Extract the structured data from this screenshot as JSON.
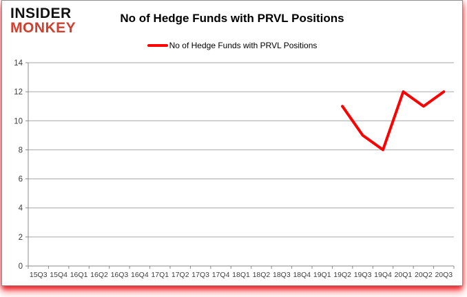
{
  "logo": {
    "line1": "INSIDER",
    "line2": "MONKEY",
    "line1_color": "#111111",
    "line2_color": "#d1402f"
  },
  "title": "No of Hedge Funds with PRVL Positions",
  "legend": {
    "label": "No of Hedge Funds with PRVL Positions",
    "line_color": "#fe0000"
  },
  "chart_data": {
    "type": "line",
    "title": "No of Hedge Funds with PRVL Positions",
    "categories": [
      "15Q3",
      "15Q4",
      "16Q1",
      "16Q2",
      "16Q3",
      "16Q4",
      "17Q1",
      "17Q2",
      "17Q3",
      "17Q4",
      "18Q1",
      "18Q2",
      "18Q3",
      "18Q4",
      "19Q1",
      "19Q2",
      "19Q3",
      "19Q4",
      "20Q1",
      "20Q2",
      "20Q3"
    ],
    "series": [
      {
        "name": "No of Hedge Funds with PRVL Positions",
        "color": "#fe0000",
        "values": [
          null,
          null,
          null,
          null,
          null,
          null,
          null,
          null,
          null,
          null,
          null,
          null,
          null,
          null,
          null,
          11,
          9,
          8,
          12,
          11,
          12
        ]
      }
    ],
    "xlabel": "",
    "ylabel": "",
    "ylim": [
      0,
      14
    ],
    "ytick_step": 2,
    "grid": true,
    "legend_position": "top-center",
    "grid_color": "#a6a6a6",
    "axis_color": "#898989",
    "label_color": "#3c3c3c"
  }
}
